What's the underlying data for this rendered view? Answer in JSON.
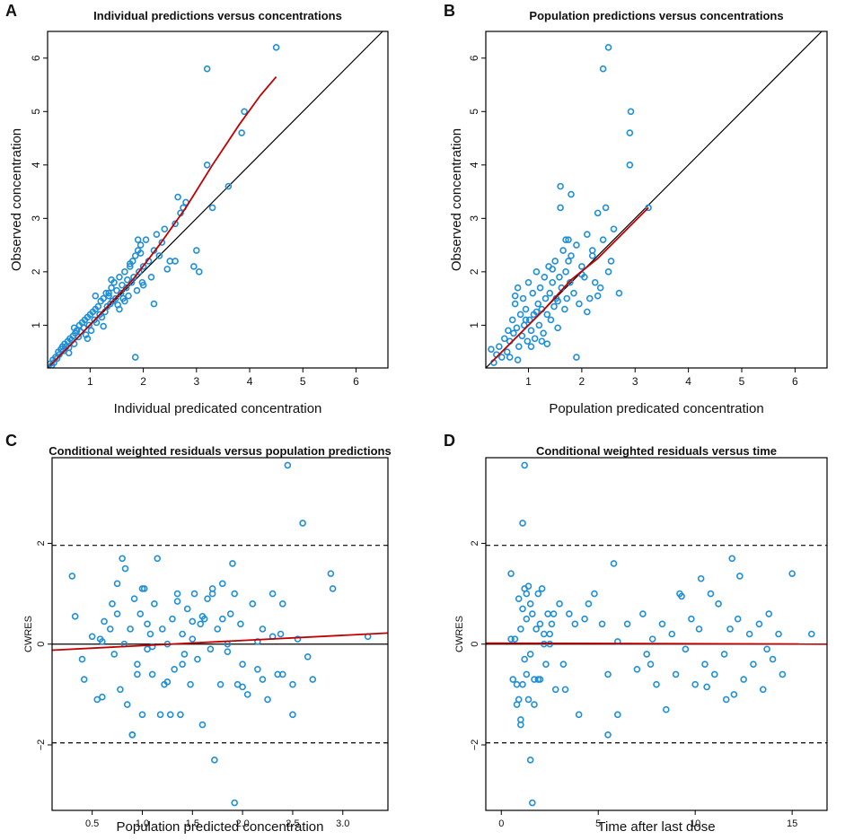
{
  "colors": {
    "points": "#1f8fd8",
    "smooth": "#c00000",
    "reference": "#000000",
    "frame": "#000000",
    "background": "#ffffff"
  },
  "chart_data": [
    {
      "panel_label": "A",
      "type": "scatter",
      "title": "Individual predictions versus concentrations",
      "xlabel": "Individual predicated concentration",
      "ylabel": "Observed concentration",
      "xlim": [
        0.2,
        6.6
      ],
      "ylim": [
        0.2,
        6.5
      ],
      "xticks": [
        1,
        2,
        3,
        4,
        5,
        6
      ],
      "yticks": [
        1,
        2,
        3,
        4,
        5,
        6
      ],
      "grid": false,
      "reference_line": {
        "type": "identity",
        "label": "line of identity"
      },
      "points": {
        "x": [
          0.25,
          0.28,
          0.3,
          0.32,
          0.35,
          0.38,
          0.4,
          0.42,
          0.45,
          0.48,
          0.5,
          0.52,
          0.55,
          0.58,
          0.6,
          0.62,
          0.65,
          0.68,
          0.7,
          0.72,
          0.75,
          0.78,
          0.8,
          0.82,
          0.85,
          0.88,
          0.9,
          0.92,
          0.95,
          0.98,
          1.0,
          1.02,
          1.05,
          1.08,
          1.1,
          1.12,
          1.15,
          1.18,
          1.2,
          1.22,
          1.25,
          1.28,
          1.3,
          1.32,
          1.35,
          1.38,
          1.4,
          1.42,
          1.45,
          1.48,
          1.5,
          1.52,
          1.55,
          1.58,
          1.6,
          1.62,
          1.65,
          1.68,
          1.7,
          1.72,
          1.75,
          1.78,
          1.8,
          1.82,
          1.85,
          1.88,
          1.9,
          1.92,
          1.95,
          1.98,
          2.0,
          2.05,
          2.1,
          2.15,
          2.2,
          2.25,
          2.3,
          2.4,
          2.5,
          2.6,
          2.7,
          2.8,
          2.95,
          3.0,
          3.2,
          3.3,
          3.6,
          3.85,
          3.9,
          4.5,
          1.85,
          3.2,
          0.7,
          1.1,
          1.4,
          1.55,
          1.75,
          2.0,
          2.35,
          2.65,
          1.25,
          1.65,
          1.95,
          2.2,
          2.45,
          2.75,
          0.6,
          0.95,
          1.35,
          1.9,
          2.6,
          3.05
        ],
        "y": [
          0.28,
          0.25,
          0.35,
          0.3,
          0.4,
          0.38,
          0.5,
          0.45,
          0.55,
          0.6,
          0.52,
          0.65,
          0.6,
          0.7,
          0.58,
          0.75,
          0.72,
          0.8,
          0.65,
          0.85,
          0.9,
          0.78,
          1.0,
          0.88,
          1.05,
          0.95,
          1.1,
          0.82,
          1.15,
          1.0,
          1.2,
          0.9,
          1.25,
          1.1,
          1.3,
          1.05,
          1.35,
          1.2,
          1.45,
          1.15,
          1.5,
          1.25,
          1.6,
          1.35,
          1.55,
          1.4,
          1.7,
          1.45,
          1.8,
          1.5,
          1.65,
          1.38,
          1.9,
          1.6,
          1.75,
          1.5,
          2.0,
          1.7,
          1.85,
          1.55,
          2.1,
          1.8,
          2.2,
          1.9,
          2.3,
          1.65,
          2.4,
          2.0,
          2.5,
          1.8,
          2.1,
          2.6,
          2.2,
          1.9,
          2.4,
          2.7,
          2.3,
          2.8,
          2.2,
          2.9,
          3.1,
          3.3,
          2.1,
          2.4,
          4.0,
          3.2,
          3.6,
          4.6,
          5.0,
          6.2,
          0.4,
          5.8,
          0.95,
          1.55,
          1.85,
          1.3,
          2.15,
          1.75,
          2.55,
          3.4,
          0.98,
          1.45,
          2.35,
          1.4,
          2.05,
          3.2,
          0.48,
          0.75,
          1.6,
          2.6,
          2.2,
          2.0
        ]
      },
      "smooth_line": {
        "x": [
          0.25,
          0.8,
          1.3,
          1.8,
          2.3,
          2.8,
          3.3,
          3.8,
          4.2,
          4.5
        ],
        "y": [
          0.25,
          0.8,
          1.32,
          1.85,
          2.5,
          3.2,
          4.0,
          4.75,
          5.3,
          5.65
        ]
      }
    },
    {
      "panel_label": "B",
      "type": "scatter",
      "title": "Population predictions versus concentrations",
      "xlabel": "Population predicated concentration",
      "ylabel": "Observed concentration",
      "xlim": [
        0.2,
        6.6
      ],
      "ylim": [
        0.2,
        6.5
      ],
      "xticks": [
        1,
        2,
        3,
        4,
        5,
        6
      ],
      "yticks": [
        1,
        2,
        3,
        4,
        5,
        6
      ],
      "grid": false,
      "reference_line": {
        "type": "identity",
        "label": "line of identity"
      },
      "points": {
        "x": [
          0.3,
          0.35,
          0.4,
          0.45,
          0.5,
          0.55,
          0.6,
          0.62,
          0.65,
          0.7,
          0.72,
          0.75,
          0.78,
          0.8,
          0.82,
          0.85,
          0.88,
          0.9,
          0.92,
          0.95,
          0.98,
          1.0,
          1.02,
          1.05,
          1.08,
          1.1,
          1.12,
          1.15,
          1.18,
          1.2,
          1.22,
          1.25,
          1.28,
          1.3,
          1.32,
          1.35,
          1.38,
          1.4,
          1.42,
          1.45,
          1.48,
          1.5,
          1.52,
          1.55,
          1.58,
          1.6,
          1.62,
          1.65,
          1.68,
          1.7,
          1.72,
          1.75,
          1.78,
          1.8,
          1.85,
          1.9,
          1.95,
          2.0,
          2.05,
          2.1,
          2.15,
          2.2,
          2.25,
          2.3,
          2.35,
          2.4,
          2.45,
          2.5,
          2.55,
          2.6,
          2.7,
          2.9,
          2.9,
          2.92,
          2.4,
          2.5,
          1.6,
          1.8,
          1.7,
          3.25,
          0.8,
          1.15,
          1.9,
          2.2,
          0.65,
          1.05,
          1.55,
          2.0,
          0.95,
          1.35,
          1.75,
          2.3,
          1.45,
          0.75,
          1.25,
          2.1
        ],
        "y": [
          0.55,
          0.3,
          0.45,
          0.6,
          0.4,
          0.75,
          0.5,
          0.9,
          0.7,
          1.1,
          0.85,
          1.4,
          0.95,
          1.7,
          0.6,
          1.2,
          0.8,
          1.5,
          1.0,
          1.3,
          0.7,
          1.8,
          1.1,
          0.9,
          1.6,
          1.2,
          0.75,
          2.0,
          1.4,
          1.0,
          1.7,
          1.3,
          0.85,
          1.9,
          1.5,
          1.2,
          2.1,
          1.6,
          1.1,
          1.8,
          1.35,
          2.2,
          1.5,
          0.95,
          1.9,
          3.6,
          1.7,
          2.4,
          1.3,
          2.0,
          1.5,
          2.6,
          1.8,
          2.3,
          1.6,
          2.5,
          1.4,
          2.1,
          1.9,
          2.7,
          1.5,
          2.4,
          1.8,
          3.1,
          1.7,
          2.6,
          3.2,
          2.0,
          2.2,
          2.8,
          1.6,
          4.0,
          4.6,
          5.0,
          5.8,
          6.2,
          3.2,
          3.45,
          2.6,
          3.2,
          0.35,
          1.25,
          0.4,
          2.3,
          0.4,
          0.6,
          1.45,
          1.95,
          1.1,
          0.65,
          2.2,
          1.55,
          2.05,
          1.55,
          0.7,
          1.25
        ]
      },
      "smooth_line": {
        "x": [
          0.3,
          0.8,
          1.3,
          1.8,
          2.3,
          2.8,
          3.25
        ],
        "y": [
          0.3,
          0.8,
          1.3,
          1.85,
          2.25,
          2.75,
          3.2
        ]
      }
    },
    {
      "panel_label": "C",
      "type": "scatter",
      "title": "Conditional weighted residuals versus population predictions",
      "xlabel": "Population predicted concentration",
      "ylabel": "CWRES",
      "xlim": [
        0.1,
        3.45
      ],
      "ylim": [
        -3.3,
        3.7
      ],
      "xticks": [
        0.5,
        1.0,
        1.5,
        2.0,
        2.5,
        3.0
      ],
      "xtick_labels": [
        "0.5",
        "1.0",
        "1.5",
        "2.0",
        "2.5",
        "3.0"
      ],
      "yticks": [
        -2,
        0,
        2
      ],
      "ytick_labels": [
        "−2",
        "0",
        "2"
      ],
      "grid": false,
      "reference_lines": [
        {
          "type": "horizontal",
          "y": 0,
          "style": "solid"
        },
        {
          "type": "horizontal",
          "y": 1.96,
          "style": "dashed"
        },
        {
          "type": "horizontal",
          "y": -1.96,
          "style": "dashed"
        }
      ],
      "points": {
        "x": [
          0.3,
          0.33,
          0.4,
          0.42,
          0.5,
          0.55,
          0.58,
          0.6,
          0.62,
          0.68,
          0.7,
          0.72,
          0.75,
          0.78,
          0.8,
          0.82,
          0.83,
          0.85,
          0.88,
          0.9,
          0.92,
          0.95,
          0.98,
          1.0,
          1.02,
          1.05,
          1.08,
          1.1,
          1.12,
          1.15,
          1.18,
          1.2,
          1.22,
          1.25,
          1.28,
          1.3,
          1.32,
          1.35,
          1.38,
          1.4,
          1.42,
          1.45,
          1.48,
          1.5,
          1.52,
          1.55,
          1.58,
          1.6,
          1.62,
          1.65,
          1.68,
          1.7,
          1.72,
          1.75,
          1.78,
          1.8,
          1.85,
          1.88,
          1.9,
          1.92,
          1.95,
          1.98,
          2.0,
          2.05,
          2.1,
          2.15,
          2.2,
          2.25,
          2.3,
          2.35,
          2.38,
          2.4,
          2.45,
          2.5,
          2.55,
          2.6,
          2.7,
          2.88,
          2.9,
          3.25,
          2.4,
          2.5,
          1.92,
          1.7,
          0.9,
          0.6,
          1.1,
          1.4,
          1.8,
          2.2,
          2.65,
          0.95,
          1.25,
          1.6,
          2.0,
          2.3,
          0.75,
          1.05,
          1.5,
          1.85,
          2.15,
          1.0,
          1.35
        ],
        "y": [
          1.35,
          0.55,
          -0.3,
          -0.7,
          0.15,
          -1.1,
          0.1,
          -1.05,
          0.45,
          0.3,
          0.8,
          -0.2,
          1.2,
          -0.9,
          1.7,
          0.0,
          1.5,
          -1.2,
          0.3,
          -1.8,
          0.9,
          -0.4,
          0.6,
          -1.4,
          1.1,
          -0.1,
          0.2,
          -0.6,
          0.8,
          1.7,
          -1.4,
          0.3,
          -0.8,
          0.0,
          -1.4,
          0.5,
          -0.5,
          1.0,
          -1.4,
          0.2,
          -0.2,
          0.7,
          -0.8,
          0.1,
          1.0,
          -0.3,
          0.4,
          -1.6,
          0.5,
          0.9,
          -0.1,
          1.1,
          -2.3,
          0.3,
          -0.8,
          1.2,
          0.0,
          0.6,
          1.6,
          1.0,
          -0.8,
          0.4,
          -0.4,
          -1.0,
          0.8,
          -0.5,
          0.3,
          -1.1,
          1.0,
          -0.6,
          0.2,
          -0.6,
          3.55,
          -1.4,
          0.1,
          2.4,
          -0.7,
          1.4,
          1.1,
          0.15,
          0.8,
          -0.8,
          -3.15,
          1.0,
          -1.8,
          0.05,
          -0.05,
          -0.4,
          0.5,
          -0.7,
          -0.25,
          -0.6,
          -0.75,
          0.55,
          -0.85,
          0.15,
          0.6,
          0.4,
          0.45,
          -0.15,
          0.05,
          1.1,
          0.85
        ]
      },
      "smooth_line": {
        "x": [
          0.1,
          3.45
        ],
        "y": [
          -0.12,
          0.22
        ]
      }
    },
    {
      "panel_label": "D",
      "type": "scatter",
      "title": "Conditional weighted residuals versus time",
      "xlabel": "Time after last dose",
      "ylabel": "CWRES",
      "xlim": [
        -0.8,
        16.8
      ],
      "ylim": [
        -3.3,
        3.7
      ],
      "xticks": [
        0,
        5,
        10,
        15
      ],
      "xtick_labels": [
        "0",
        "5",
        "10",
        "15"
      ],
      "yticks": [
        -2,
        0,
        2
      ],
      "ytick_labels": [
        "−2",
        "0",
        "2"
      ],
      "grid": false,
      "reference_lines": [
        {
          "type": "horizontal",
          "y": 0,
          "style": "solid"
        },
        {
          "type": "horizontal",
          "y": 1.96,
          "style": "dashed"
        },
        {
          "type": "horizontal",
          "y": -1.96,
          "style": "dashed"
        }
      ],
      "points": {
        "x": [
          0.5,
          0.6,
          0.7,
          0.8,
          0.9,
          1.0,
          1.0,
          1.1,
          1.1,
          1.2,
          1.2,
          1.3,
          1.3,
          1.4,
          1.5,
          1.5,
          1.6,
          1.7,
          1.8,
          1.9,
          2.0,
          2.0,
          2.1,
          2.2,
          2.3,
          2.4,
          2.5,
          2.6,
          2.8,
          3.0,
          3.2,
          3.5,
          4.0,
          4.3,
          4.8,
          5.2,
          5.5,
          5.8,
          6.0,
          6.5,
          7.0,
          7.3,
          7.5,
          7.8,
          8.0,
          8.3,
          8.5,
          8.8,
          9.0,
          9.2,
          9.5,
          9.8,
          10.0,
          10.2,
          10.5,
          10.8,
          11.0,
          11.2,
          11.5,
          11.8,
          12.0,
          12.2,
          12.5,
          12.8,
          13.0,
          13.3,
          13.5,
          13.8,
          14.0,
          14.3,
          14.5,
          15.0,
          16.0,
          1.2,
          1.1,
          1.5,
          1.6,
          6.0,
          5.5,
          0.5,
          0.8,
          1.0,
          1.3,
          1.7,
          2.2,
          2.7,
          3.3,
          0.9,
          1.4,
          1.9,
          2.5,
          3.8,
          10.3,
          11.6,
          12.3,
          9.3,
          7.7,
          4.5,
          13.7,
          10.6,
          11.9
        ],
        "y": [
          1.4,
          -0.7,
          0.1,
          -1.2,
          0.9,
          -1.5,
          0.3,
          -0.8,
          0.7,
          -0.3,
          1.1,
          -0.6,
          0.5,
          -1.1,
          0.8,
          -0.2,
          0.6,
          -1.2,
          0.3,
          1.0,
          -0.7,
          0.4,
          1.1,
          0.2,
          -0.4,
          0.6,
          0.0,
          0.4,
          -0.9,
          0.8,
          -0.4,
          0.6,
          -1.4,
          0.5,
          1.0,
          0.4,
          -0.6,
          1.6,
          -1.4,
          0.4,
          -0.5,
          0.6,
          -0.2,
          0.1,
          -0.8,
          0.4,
          -1.3,
          0.2,
          -0.6,
          1.0,
          -0.1,
          0.5,
          -0.8,
          0.3,
          -0.4,
          1.0,
          -0.6,
          0.8,
          -0.2,
          0.3,
          -1.0,
          0.5,
          -0.7,
          0.2,
          -0.4,
          0.4,
          -0.9,
          0.6,
          -0.3,
          0.2,
          -0.6,
          1.4,
          0.2,
          3.55,
          2.4,
          -2.3,
          -3.15,
          0.05,
          -1.8,
          0.1,
          -0.8,
          -1.6,
          1.0,
          -0.7,
          0.0,
          0.6,
          -0.9,
          -1.1,
          1.15,
          -0.7,
          0.2,
          0.4,
          1.3,
          -1.1,
          1.35,
          0.95,
          -0.4,
          0.8,
          -0.1,
          -0.85,
          1.7
        ]
      },
      "smooth_line": {
        "x": [
          -0.8,
          16.8
        ],
        "y": [
          0.02,
          0.0
        ]
      }
    }
  ]
}
